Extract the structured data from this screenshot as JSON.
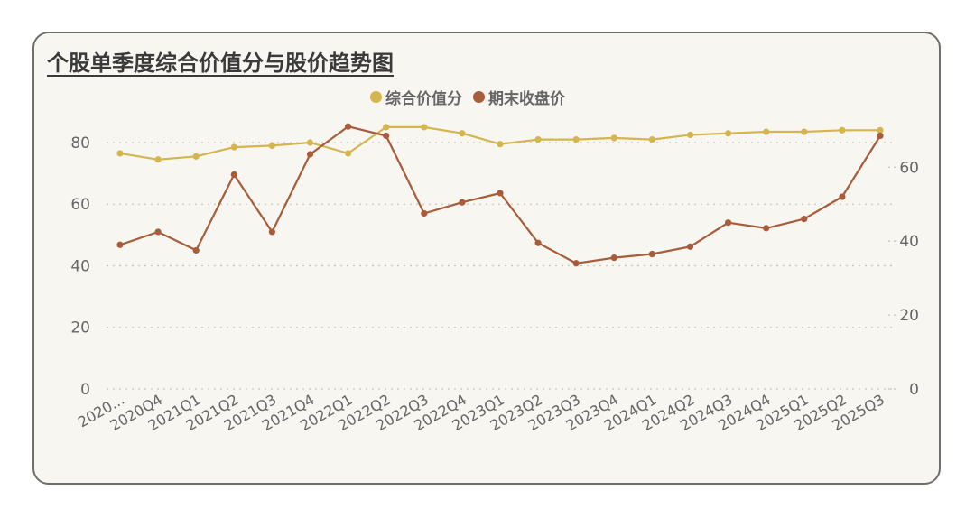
{
  "title": "个股单季度综合价值分与股价趋势图",
  "colors": {
    "score": "#d4b54e",
    "price": "#a85c3a",
    "grid": "#c9c6bd",
    "background": "#f8f6f1"
  },
  "chart_data": {
    "type": "line",
    "title": "个股单季度综合价值分与股价趋势图",
    "categories": [
      "2020...",
      "2020Q4",
      "2021Q1",
      "2021Q2",
      "2021Q3",
      "2021Q4",
      "2022Q1",
      "2022Q2",
      "2022Q3",
      "2022Q4",
      "2023Q1",
      "2023Q2",
      "2023Q3",
      "2023Q4",
      "2024Q1",
      "2024Q2",
      "2024Q3",
      "2024Q4",
      "2025Q1",
      "2025Q2",
      "2025Q3"
    ],
    "x_axis_labels": [
      "2020...",
      "2020Q4",
      "2021Q1",
      "2021Q2",
      "2021Q3",
      "2021Q4",
      "2022Q1",
      "2022Q2",
      "2022Q3",
      "2022Q4",
      "2023Q1",
      "2023Q2",
      "2023Q3",
      "2023Q4",
      "2024Q1",
      "2024Q2",
      "2024Q3",
      "2024Q4",
      "2025Q1",
      "2025Q2",
      "2025Q3"
    ],
    "point_count": 21,
    "series": [
      {
        "name": "综合价值分",
        "axis": "left",
        "values": [
          76.5,
          74.5,
          75.5,
          78.5,
          79,
          80,
          76.5,
          85,
          85,
          83,
          79.5,
          81,
          81,
          81.5,
          81,
          82.5,
          83,
          83.5,
          83.5,
          84,
          84
        ]
      },
      {
        "name": "期末收盘价",
        "axis": "right",
        "values": [
          39,
          42.5,
          37.5,
          58,
          42.5,
          63.5,
          71,
          68.5,
          47.5,
          50.5,
          53,
          39.5,
          34,
          35.5,
          36.5,
          38.5,
          45,
          43.5,
          46,
          52,
          68.5
        ]
      }
    ],
    "y_left": {
      "ticks": [
        0,
        20,
        40,
        60,
        80
      ],
      "ylim": [
        0,
        88.2
      ]
    },
    "y_right": {
      "ticks": [
        0,
        20,
        40,
        60
      ],
      "ylim": [
        0,
        73.5
      ]
    },
    "grid": true,
    "legend": "top-center"
  }
}
